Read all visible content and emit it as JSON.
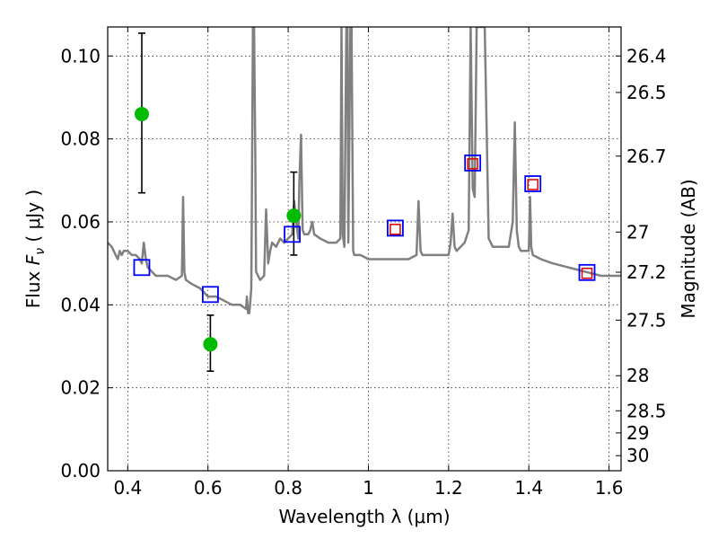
{
  "chart_data": {
    "type": "scatter",
    "title": "",
    "xlabel": "Wavelength  λ (μm)",
    "ylabel": "Flux  F_ν  ( μJy )",
    "ylabel_parts": {
      "prefix": "Flux  ",
      "symbol": "F",
      "sub": "ν",
      "suffix": "  ( μJy )"
    },
    "ylabel_right": "Magnitude (AB)",
    "xlim": [
      0.35,
      1.63
    ],
    "ylim": [
      0.0,
      0.107
    ],
    "grid": true,
    "x_ticks": [
      0.4,
      0.6,
      0.8,
      1.0,
      1.2,
      1.4,
      1.6
    ],
    "x_tick_labels": [
      "0.4",
      "0.6",
      "0.8",
      "1",
      "1.2",
      "1.4",
      "1.6"
    ],
    "y_ticks": [
      0.0,
      0.02,
      0.04,
      0.06,
      0.08,
      0.1
    ],
    "y_tick_labels": [
      "0.00",
      "0.02",
      "0.04",
      "0.06",
      "0.08",
      "0.10"
    ],
    "mag_ticks": [
      26.4,
      26.5,
      26.7,
      27,
      27.2,
      27.5,
      28,
      28.5,
      29,
      30
    ],
    "mag_tick_labels": [
      "26.4",
      "26.5",
      "26.7",
      "27",
      "27.2",
      "27.5",
      "28",
      "28.5",
      "29",
      "30"
    ],
    "series": [
      {
        "type": "line",
        "color": "#808080",
        "x": [
          0.35,
          0.36,
          0.37,
          0.375,
          0.38,
          0.385,
          0.39,
          0.4,
          0.41,
          0.42,
          0.43,
          0.435,
          0.44,
          0.445,
          0.45,
          0.46,
          0.47,
          0.48,
          0.5,
          0.52,
          0.535,
          0.538,
          0.541,
          0.545,
          0.56,
          0.58,
          0.6,
          0.62,
          0.64,
          0.66,
          0.68,
          0.695,
          0.697,
          0.7,
          0.703,
          0.705,
          0.708,
          0.71,
          0.712,
          0.715,
          0.718,
          0.72,
          0.73,
          0.74,
          0.745,
          0.75,
          0.755,
          0.76,
          0.77,
          0.78,
          0.79,
          0.8,
          0.81,
          0.815,
          0.82,
          0.825,
          0.828,
          0.832,
          0.836,
          0.84,
          0.85,
          0.855,
          0.86,
          0.865,
          0.88,
          0.9,
          0.92,
          0.93,
          0.933,
          0.936,
          0.94,
          0.945,
          0.948,
          0.95,
          0.955,
          0.958,
          0.962,
          0.965,
          0.97,
          0.98,
          1.0,
          1.02,
          1.05,
          1.08,
          1.1,
          1.12,
          1.125,
          1.13,
          1.135,
          1.15,
          1.18,
          1.2,
          1.205,
          1.21,
          1.215,
          1.22,
          1.24,
          1.25,
          1.255,
          1.26,
          1.265,
          1.27,
          1.275,
          1.28,
          1.29,
          1.3,
          1.305,
          1.31,
          1.33,
          1.35,
          1.36,
          1.365,
          1.37,
          1.375,
          1.38,
          1.4,
          1.403,
          1.406,
          1.41,
          1.43,
          1.46,
          1.5,
          1.54,
          1.58,
          1.6,
          1.63
        ],
        "y": [
          0.055,
          0.054,
          0.052,
          0.051,
          0.053,
          0.052,
          0.053,
          0.053,
          0.052,
          0.052,
          0.051,
          0.05,
          0.055,
          0.051,
          0.049,
          0.048,
          0.047,
          0.047,
          0.047,
          0.046,
          0.047,
          0.066,
          0.048,
          0.046,
          0.045,
          0.044,
          0.042,
          0.042,
          0.041,
          0.04,
          0.04,
          0.039,
          0.042,
          0.038,
          0.038,
          0.04,
          0.044,
          0.075,
          0.107,
          0.107,
          0.075,
          0.048,
          0.046,
          0.047,
          0.063,
          0.05,
          0.053,
          0.055,
          0.054,
          0.056,
          0.055,
          0.056,
          0.057,
          0.065,
          0.06,
          0.056,
          0.07,
          0.081,
          0.058,
          0.057,
          0.057,
          0.058,
          0.06,
          0.057,
          0.056,
          0.055,
          0.055,
          0.056,
          0.107,
          0.057,
          0.054,
          0.107,
          0.107,
          0.055,
          0.107,
          0.107,
          0.053,
          0.052,
          0.052,
          0.052,
          0.051,
          0.051,
          0.051,
          0.051,
          0.051,
          0.052,
          0.065,
          0.053,
          0.052,
          0.052,
          0.052,
          0.052,
          0.055,
          0.062,
          0.054,
          0.053,
          0.055,
          0.058,
          0.107,
          0.068,
          0.066,
          0.107,
          0.107,
          0.107,
          0.107,
          0.056,
          0.055,
          0.054,
          0.054,
          0.054,
          0.06,
          0.084,
          0.058,
          0.054,
          0.053,
          0.053,
          0.066,
          0.054,
          0.052,
          0.051,
          0.05,
          0.049,
          0.048,
          0.047,
          0.047,
          0.047
        ]
      },
      {
        "type": "scatter",
        "marker": "circle",
        "color": "#00bb00",
        "x": [
          0.435,
          0.606,
          0.814
        ],
        "y": [
          0.086,
          0.0305,
          0.0615
        ],
        "yerr_low": [
          0.067,
          0.024,
          0.052
        ],
        "yerr_high": [
          0.1055,
          0.0375,
          0.072
        ]
      },
      {
        "type": "scatter",
        "marker": "open-square",
        "color": "#0000ff",
        "x": [
          0.435,
          0.606,
          0.81,
          1.067,
          1.26,
          1.41,
          1.545
        ],
        "y": [
          0.049,
          0.0425,
          0.057,
          0.0585,
          0.0742,
          0.0692,
          0.0478
        ]
      },
      {
        "type": "scatter",
        "marker": "open-square-small",
        "color": "#dd0000",
        "x": [
          1.067,
          1.26,
          1.41,
          1.545
        ],
        "y": [
          0.0582,
          0.074,
          0.069,
          0.0476
        ]
      }
    ]
  }
}
